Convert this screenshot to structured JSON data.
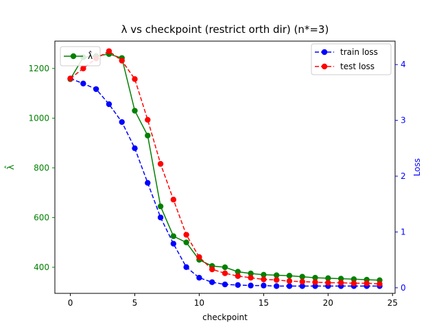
{
  "chart_data": {
    "type": "line",
    "title": "λ vs checkpoint (restrict orth dir) (n*=3)",
    "xlabel": "checkpoint",
    "ylabel_left": "λ̂",
    "ylabel_right": "Loss",
    "xlim": [
      -1.2,
      25.2
    ],
    "ylim_left": [
      295,
      1310
    ],
    "ylim_right": [
      -0.1,
      4.42
    ],
    "x_ticks": [
      0,
      5,
      10,
      15,
      20,
      25
    ],
    "y_left_ticks": [
      400,
      600,
      800,
      1000,
      1200
    ],
    "y_right_ticks": [
      0,
      1,
      2,
      3,
      4
    ],
    "grid": false,
    "x": [
      0,
      1,
      2,
      3,
      4,
      5,
      6,
      7,
      8,
      9,
      10,
      11,
      12,
      13,
      14,
      15,
      16,
      17,
      18,
      19,
      20,
      21,
      22,
      23,
      24
    ],
    "series": [
      {
        "name": "λ̂",
        "axis": "left",
        "color": "#008000",
        "linestyle": "solid",
        "legend": "top-left",
        "values": [
          1157,
          1245,
          1250,
          1258,
          1242,
          1030,
          930,
          645,
          525,
          500,
          430,
          405,
          400,
          382,
          375,
          370,
          368,
          366,
          362,
          358,
          356,
          354,
          352,
          350,
          348
        ]
      },
      {
        "name": "train loss",
        "axis": "right",
        "color": "#0000ff",
        "linestyle": "dashed",
        "legend": "top-right",
        "values": [
          3.75,
          3.66,
          3.56,
          3.29,
          2.97,
          2.5,
          1.88,
          1.26,
          0.79,
          0.37,
          0.18,
          0.1,
          0.06,
          0.05,
          0.04,
          0.04,
          0.03,
          0.03,
          0.03,
          0.03,
          0.03,
          0.03,
          0.03,
          0.03,
          0.03
        ]
      },
      {
        "name": "test loss",
        "axis": "right",
        "color": "#ff0000",
        "linestyle": "dashed",
        "legend": "top-right",
        "values": [
          3.75,
          3.93,
          4.11,
          4.24,
          4.07,
          3.74,
          3.01,
          2.22,
          1.58,
          0.95,
          0.55,
          0.33,
          0.26,
          0.21,
          0.18,
          0.15,
          0.14,
          0.12,
          0.11,
          0.1,
          0.09,
          0.09,
          0.08,
          0.08,
          0.07
        ]
      }
    ]
  }
}
